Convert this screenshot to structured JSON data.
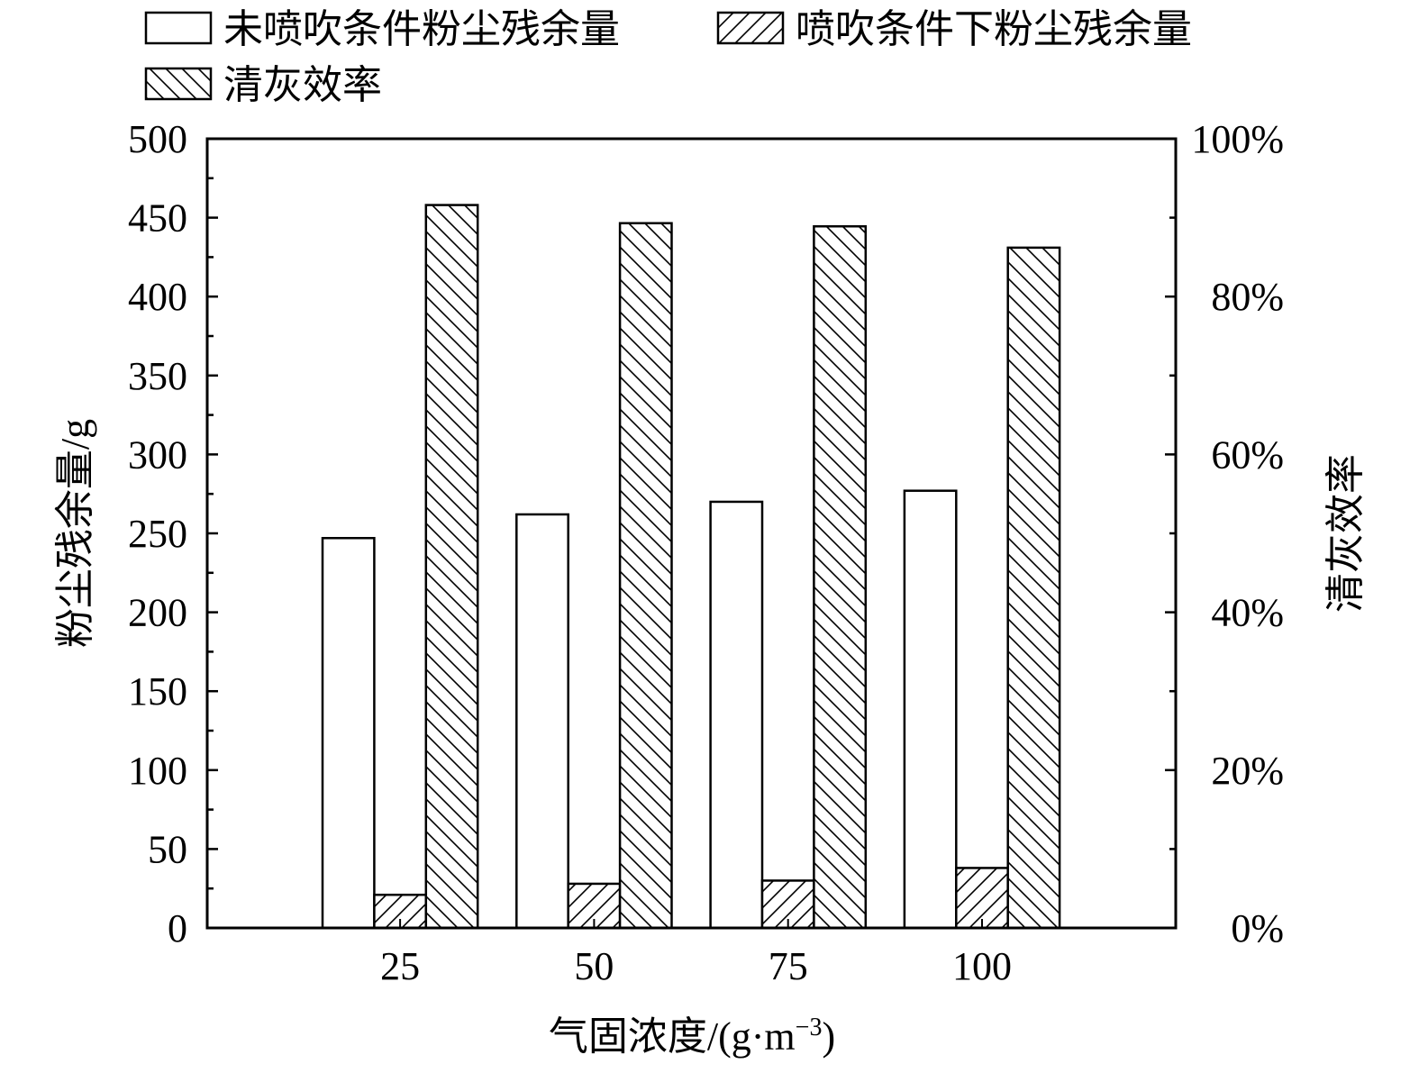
{
  "chart_data": {
    "type": "bar",
    "xlabel": "气固浓度/(g·m",
    "xlabel_sup": "−3",
    "xlabel_tail": ")",
    "ylabel_left": "粉尘残余量/g",
    "ylabel_right": "清灰效率",
    "categories": [
      "25",
      "50",
      "75",
      "100"
    ],
    "ylim_left": [
      0,
      500
    ],
    "yticks_left": [
      "0",
      "50",
      "100",
      "150",
      "200",
      "250",
      "300",
      "350",
      "400",
      "450",
      "500"
    ],
    "ylim_right": [
      0,
      100
    ],
    "yticks_right": [
      "0%",
      "20%",
      "40%",
      "60%",
      "80%",
      "100%"
    ],
    "grid": false,
    "legend_position": "top",
    "series": [
      {
        "name": "未喷吹条件粉尘残余量",
        "axis": "left",
        "pattern": "none",
        "values": [
          247,
          262,
          270,
          277
        ]
      },
      {
        "name": "喷吹条件下粉尘残余量",
        "axis": "left",
        "pattern": "forward-hatch",
        "values": [
          21,
          28,
          30,
          38
        ]
      },
      {
        "name": "清灰效率",
        "axis": "right",
        "pattern": "back-hatch",
        "values": [
          91.6,
          89.3,
          88.9,
          86.2
        ]
      }
    ]
  }
}
